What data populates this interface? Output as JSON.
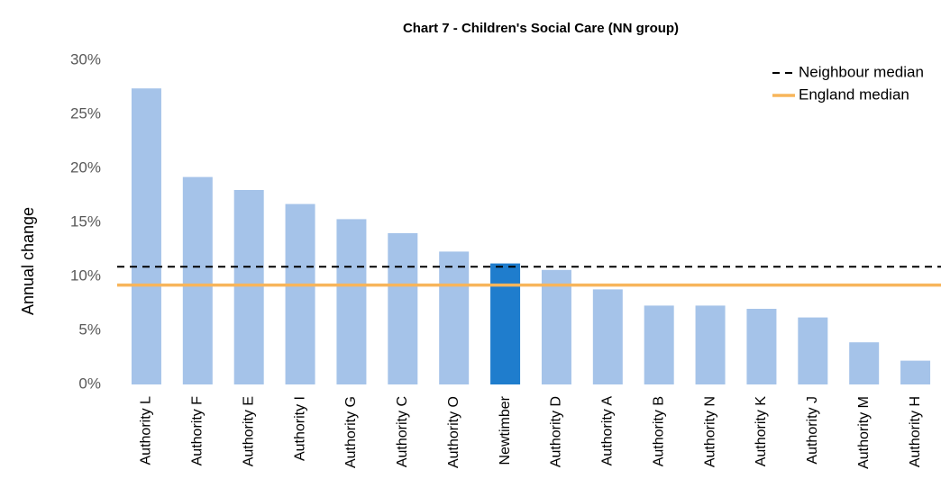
{
  "chart_data": {
    "type": "bar",
    "title": "Chart 7 - Children's Social Care (NN group)",
    "y_label": "Annual change",
    "categories": [
      "Authority L",
      "Authority F",
      "Authority E",
      "Authority I",
      "Authority G",
      "Authority C",
      "Authority O",
      "Newtimber",
      "Authority D",
      "Authority A",
      "Authority B",
      "Authority N",
      "Authority K",
      "Authority J",
      "Authority M",
      "Authority H"
    ],
    "values": [
      27.4,
      19.2,
      18.0,
      16.7,
      15.3,
      14.0,
      12.3,
      11.2,
      10.6,
      8.8,
      7.3,
      7.3,
      7.0,
      6.2,
      3.9,
      2.2
    ],
    "colors": [
      "#a5c3e9",
      "#a5c3e9",
      "#a5c3e9",
      "#a5c3e9",
      "#a5c3e9",
      "#a5c3e9",
      "#a5c3e9",
      "#1f7dcd",
      "#a5c3e9",
      "#a5c3e9",
      "#a5c3e9",
      "#a5c3e9",
      "#a5c3e9",
      "#a5c3e9",
      "#a5c3e9",
      "#a5c3e9"
    ],
    "reference_lines": [
      {
        "name": "Neighbour median",
        "value": 10.9,
        "color": "#000000",
        "style": "dashed"
      },
      {
        "name": "England median",
        "value": 9.2,
        "color": "#f7b55b",
        "style": "solid"
      }
    ],
    "ylim": [
      0,
      30
    ],
    "yticks": [
      {
        "value": 0,
        "label": "0%"
      },
      {
        "value": 5,
        "label": "5%"
      },
      {
        "value": 10,
        "label": "10%"
      },
      {
        "value": 15,
        "label": "15%"
      },
      {
        "value": 20,
        "label": "20%"
      },
      {
        "value": 25,
        "label": "25%"
      },
      {
        "value": 30,
        "label": "30%"
      }
    ],
    "legend": "top-right"
  }
}
